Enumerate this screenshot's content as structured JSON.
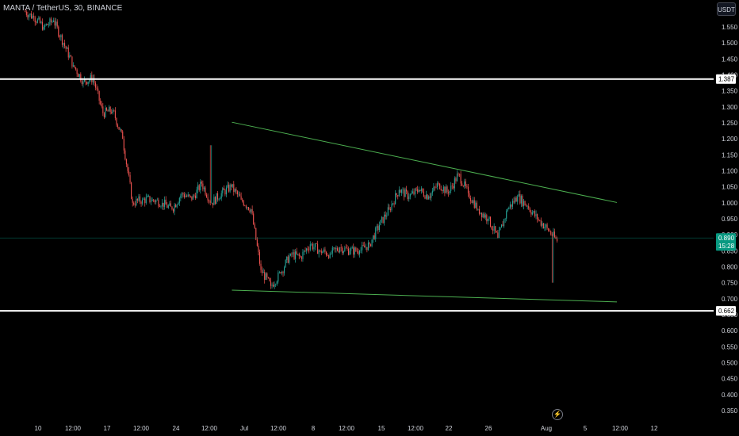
{
  "header": {
    "title": "MANTA / TetherUS, 30, BINANCE",
    "currency": "USDT"
  },
  "price_axis": {
    "ticks": [
      1.55,
      1.5,
      1.45,
      1.4,
      1.35,
      1.3,
      1.25,
      1.2,
      1.15,
      1.1,
      1.05,
      1.0,
      0.95,
      0.9,
      0.85,
      0.8,
      0.75,
      0.7,
      0.65,
      0.6,
      0.55,
      0.5,
      0.45,
      0.4,
      0.35
    ],
    "tick_labels": [
      "1.550",
      "1.500",
      "1.450",
      "1.400",
      "1.350",
      "1.300",
      "1.250",
      "1.200",
      "1.150",
      "1.100",
      "1.050",
      "1.000",
      "0.950",
      "0.900",
      "0.850",
      "0.800",
      "0.750",
      "0.700",
      "0.650",
      "0.600",
      "0.550",
      "0.500",
      "0.450",
      "0.400",
      "0.350"
    ]
  },
  "time_axis": {
    "labels": [
      "10",
      "12:00",
      "17",
      "12:00",
      "24",
      "12:00",
      "Jul",
      "12:00",
      "8",
      "12:00",
      "15",
      "12:00",
      "22",
      "26",
      "Aug",
      "5",
      "12:00",
      "12"
    ]
  },
  "horizontal_levels": [
    {
      "value": 1.387,
      "label": "1.387",
      "color": "#ffffff"
    },
    {
      "value": 0.662,
      "label": "0.662",
      "color": "#ffffff"
    }
  ],
  "current_price": {
    "value": 0.89,
    "label": "0.890",
    "countdown": "15:28",
    "color": "#089981"
  },
  "trendlines": [
    {
      "name": "upper",
      "from": {
        "date": "2024-06-30",
        "price": 1.252
      },
      "to": {
        "date": "2024-08-08",
        "price": 1.001
      },
      "color": "#4caf50"
    },
    {
      "name": "lower",
      "from": {
        "date": "2024-06-30",
        "price": 0.727
      },
      "to": {
        "date": "2024-08-08",
        "price": 0.69
      },
      "color": "#4caf50"
    }
  ],
  "colors": {
    "up": "#26a69a",
    "down": "#ef5350",
    "background": "#000000",
    "text": "#d1d4dc"
  },
  "chart_data": {
    "type": "candlestick",
    "title": "MANTA / TetherUS, 30, BINANCE",
    "interval": "30",
    "ylim": [
      0.33,
      1.6
    ],
    "grid": false,
    "x": [
      "Jun 9",
      "Jun 10",
      "Jun 11",
      "Jun 12",
      "Jun 13",
      "Jun 14",
      "Jun 15",
      "Jun 16",
      "Jun 17",
      "Jun 18",
      "Jun 19",
      "Jun 20",
      "Jun 21",
      "Jun 22",
      "Jun 23",
      "Jun 24",
      "Jun 25",
      "Jun 26",
      "Jun 27",
      "Jun 28",
      "Jun 29",
      "Jun 30",
      "Jul 1",
      "Jul 2",
      "Jul 3",
      "Jul 4",
      "Jul 5",
      "Jul 6",
      "Jul 7",
      "Jul 8",
      "Jul 9",
      "Jul 10",
      "Jul 11",
      "Jul 12",
      "Jul 13",
      "Jul 14",
      "Jul 15",
      "Jul 16",
      "Jul 17",
      "Jul 18",
      "Jul 19",
      "Jul 20",
      "Jul 21",
      "Jul 22",
      "Jul 23",
      "Jul 24",
      "Jul 25",
      "Jul 26",
      "Jul 27",
      "Jul 28",
      "Jul 29",
      "Jul 30",
      "Jul 31",
      "Aug 1"
    ],
    "close": [
      1.58,
      1.55,
      1.57,
      1.5,
      1.43,
      1.38,
      1.39,
      1.28,
      1.29,
      1.2,
      1.0,
      1.01,
      1.01,
      1.0,
      0.98,
      1.03,
      1.01,
      1.06,
      1.0,
      1.03,
      1.05,
      1.01,
      0.98,
      0.79,
      0.74,
      0.78,
      0.84,
      0.83,
      0.87,
      0.85,
      0.84,
      0.86,
      0.85,
      0.85,
      0.87,
      0.93,
      0.98,
      1.04,
      1.02,
      1.04,
      1.02,
      1.06,
      1.03,
      1.09,
      1.03,
      0.98,
      0.95,
      0.89,
      0.98,
      1.02,
      0.99,
      0.95,
      0.92,
      0.88
    ]
  }
}
